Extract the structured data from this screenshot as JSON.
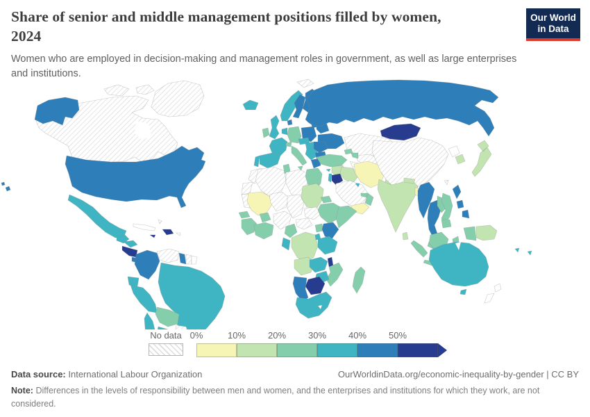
{
  "header": {
    "title_main": "Share of senior and middle management positions filled by women,",
    "title_year": "2024",
    "subtitle": "Women who are employed in decision-making and management roles in government, as well as large enterprises and institutions.",
    "logo": {
      "line1": "Our World",
      "line2": "in Data",
      "bg": "#132b52",
      "accent": "#d93a2b"
    }
  },
  "legend": {
    "no_data_label": "No data",
    "tick_labels": [
      "0%",
      "10%",
      "20%",
      "30%",
      "40%",
      "50%"
    ],
    "colors": [
      "#f7f5b5",
      "#c2e4b0",
      "#84ceac",
      "#3fb5c4",
      "#2e7fb9",
      "#283c8f"
    ]
  },
  "footer": {
    "source_label": "Data source:",
    "source_value": "International Labour Organization",
    "attribution": "OurWorldinData.org/economic-inequality-by-gender | CC BY",
    "note_label": "Note:",
    "note_value": "Differences in the levels of responsibility between men and women, and the enterprises and institutions for which they work, are not considered."
  },
  "chart_data": {
    "type": "choropleth_map",
    "title": "Share of senior and middle management positions filled by women, 2024",
    "unit": "%",
    "legend_position": "bottom",
    "bins": {
      "nodata": {
        "label": "No data",
        "color": "#ffffff",
        "pattern": "diagonal-hatch"
      },
      "none": {
        "label": "no fill",
        "color": "#ffffff"
      },
      "b0": {
        "range": "0-10%",
        "color": "#f7f5b5"
      },
      "b1": {
        "range": "10-20%",
        "color": "#c2e4b0"
      },
      "b2": {
        "range": "20-30%",
        "color": "#84ceac"
      },
      "b3": {
        "range": "30-40%",
        "color": "#3fb5c4"
      },
      "b4": {
        "range": "40-50%",
        "color": "#2e7fb9"
      },
      "b5": {
        "range": "50%+",
        "color": "#283c8f"
      }
    },
    "regions": {
      "greenland": "nodata",
      "canada": "nodata",
      "arctic-islands-1": "nodata",
      "arctic-islands-2": "nodata",
      "svalbard": "nodata",
      "alaska": "b4",
      "usa": "b4",
      "hawaii": "b4",
      "mexico": "b3",
      "guatemala": "b3",
      "honduras": "b3",
      "el-salvador-nicaragua": "b5",
      "costa-rica-panama": "b4",
      "cuba": "none",
      "jamaica": "b5",
      "hispaniola": "b5",
      "puerto-rico": "none",
      "bahamas": "nodata",
      "colombia": "b4",
      "venezuela": "nodata",
      "guyana": "b4",
      "suriname": "nodata",
      "french-guiana": "none",
      "brazil": "b3",
      "ecuador": "b3",
      "peru": "b3",
      "bolivia": "b2",
      "paraguay": "nodata",
      "chile": "b3",
      "argentina": "b3",
      "uruguay": "b3",
      "iceland": "b3",
      "norway": "b3",
      "sweden": "b4",
      "finland": "b4",
      "denmark": "b4",
      "baltics": "b4",
      "uk": "b3",
      "ireland": "b2",
      "benelux": "b3",
      "germany": "b2",
      "poland": "b4",
      "belarus": "b4",
      "ukraine": "b4",
      "france": "b3",
      "spain": "b3",
      "portugal": "b3",
      "italy": "b2",
      "switzerland": "b2",
      "austria-czech": "b3",
      "hungary-slovakia": "b3",
      "balkans": "b3",
      "romania": "b4",
      "bulgaria": "b4",
      "greece": "b4",
      "russia": "b4",
      "kazakhstan": "nodata",
      "uzbekistan": "nodata",
      "turkmenistan": "nodata",
      "kyrgyzstan": "b3",
      "tajikistan": "none",
      "georgia": "b2",
      "azerbaijan": "b2",
      "turkey": "b2",
      "cyprus": "b3",
      "syria": "b1",
      "israel": "b3",
      "jordan": "b5",
      "iraq": "b1",
      "saudi-arabia": "nodata",
      "yemen": "b0",
      "oman": "b2",
      "uae-qatar": "b2",
      "kuwait": "b3",
      "iran": "b0",
      "afghanistan": "b0",
      "pakistan": "b1",
      "mongolia": "b5",
      "china": "nodata",
      "north-korea": "none",
      "south-korea": "b1",
      "japan": "b1",
      "taiwan": "nodata",
      "india": "b1",
      "nepal": "b1",
      "bangladesh": "b0",
      "sri-lanka": "b1",
      "myanmar": "b4",
      "thailand": "b4",
      "laos": "b2",
      "vietnam": "b2",
      "cambodia": "b2",
      "malaysia": "b2",
      "philippines": "b4",
      "indonesia": "b2",
      "papua-new-guinea": "b1",
      "pacific-islands": "b3",
      "australia": "b3",
      "tasmania": "b3",
      "new-zealand": "none",
      "morocco": "nodata",
      "western-sahara": "nodata",
      "algeria": "nodata",
      "tunisia": "b2",
      "libya": "nodata",
      "egypt": "b2",
      "mauritania": "nodata",
      "mali": "b0",
      "senegal": "b2",
      "guinea-group": "b2",
      "burkina-faso": "b2",
      "ivory-coast-ghana": "b2",
      "niger": "nodata",
      "chad": "nodata",
      "nigeria": "nodata",
      "sudan": "b1",
      "eritrea": "b2",
      "djibouti": "b4",
      "south-sudan": "nodata",
      "ethiopia": "b2",
      "somalia": "b2",
      "cameroon": "b2",
      "central-african-republic": "nodata",
      "drc": "b1",
      "gabon-congo": "b3",
      "uganda": "b2",
      "kenya": "b4",
      "rwanda-burundi": "b3",
      "tanzania": "b3",
      "angola": "b1",
      "zambia": "b3",
      "malawi": "b5",
      "mozambique": "b2",
      "zimbabwe": "b3",
      "botswana": "b5",
      "namibia": "b4",
      "south-africa": "b3",
      "lesotho": "none",
      "madagascar": "b2"
    }
  }
}
